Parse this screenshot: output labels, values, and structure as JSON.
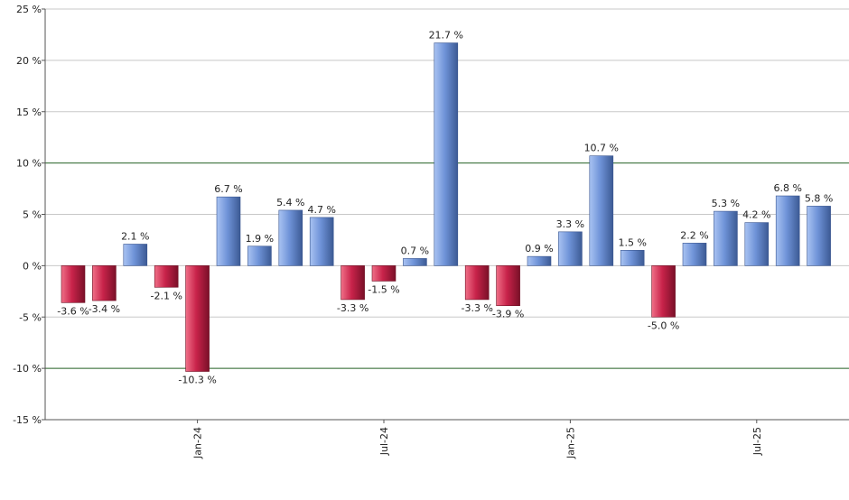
{
  "chart_data": {
    "type": "bar",
    "title": "",
    "xlabel": "",
    "ylabel": "",
    "ylim": [
      -15,
      25
    ],
    "yticks": [
      25,
      20,
      15,
      10,
      5,
      0,
      -5,
      -10,
      -15
    ],
    "ytick_labels": [
      "25 %",
      "20 %",
      "15 %",
      "10 %",
      "5 %",
      "0 %",
      "-5 %",
      "-10 %",
      "-15 %"
    ],
    "reference_lines": [
      10,
      -10
    ],
    "values": [
      -3.6,
      -3.4,
      2.1,
      -2.1,
      -10.3,
      6.7,
      1.9,
      5.4,
      4.7,
      -3.3,
      -1.5,
      0.7,
      21.7,
      -3.3,
      -3.9,
      0.9,
      3.3,
      10.7,
      1.5,
      -5.0,
      2.2,
      5.3,
      4.2,
      6.8,
      5.8
    ],
    "data_labels": [
      "-3.6 %",
      "-3.4 %",
      "2.1 %",
      "-2.1 %",
      "-10.3 %",
      "6.7 %",
      "1.9 %",
      "5.4 %",
      "4.7 %",
      "-3.3 %",
      "-1.5 %",
      "0.7 %",
      "21.7 %",
      "-3.3 %",
      "-3.9 %",
      "0.9 %",
      "3.3 %",
      "10.7 %",
      "1.5 %",
      "-5.0 %",
      "2.2 %",
      "5.3 %",
      "4.2 %",
      "6.8 %",
      "5.8 %"
    ],
    "xtick_labels": [
      {
        "label": "Jan-24",
        "bar_index": 4
      },
      {
        "label": "Jul-24",
        "bar_index": 10
      },
      {
        "label": "Jan-25",
        "bar_index": 16
      },
      {
        "label": "Jul-25",
        "bar_index": 22
      }
    ],
    "grid": true,
    "legend": "none",
    "colors": {
      "positive_light": "#a9c3f2",
      "positive_mid": "#6f93d8",
      "positive_dark": "#3c5a94",
      "negative_light": "#f07088",
      "negative_mid": "#c8234a",
      "negative_dark": "#7a1028",
      "grid": "#c8c8c8",
      "reference_line": "#2e6b2e",
      "axis": "#555555"
    }
  }
}
